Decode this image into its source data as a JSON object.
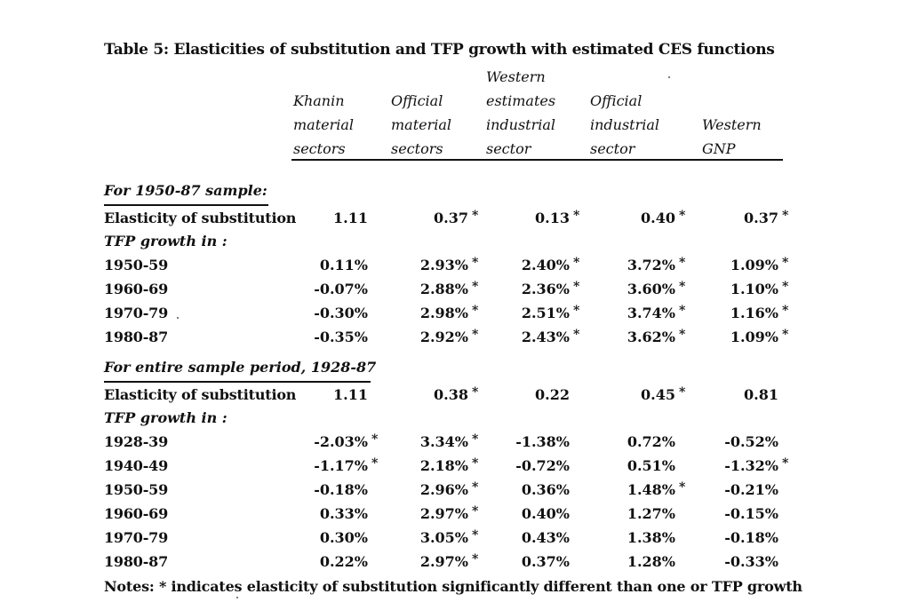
{
  "title": "Table 5:  Elasticities of substitution and TFP growth with estimated CES functions",
  "columns": [
    {
      "lines": [
        "Khanin",
        "material",
        "sectors"
      ]
    },
    {
      "lines": [
        "Official",
        "material",
        "sectors"
      ]
    },
    {
      "lines": [
        "Western",
        "estimates",
        "industrial",
        "sector"
      ]
    },
    {
      "lines": [
        "Official",
        "industrial",
        "sector"
      ]
    },
    {
      "lines": [
        "Western",
        "GNP"
      ]
    }
  ],
  "sections": [
    {
      "heading": "For 1950-87 sample:",
      "elasticity": {
        "label": "Elasticity of substitution",
        "cells": [
          {
            "v": "1.11",
            "star": ""
          },
          {
            "v": "0.37",
            "star": "*"
          },
          {
            "v": "0.13",
            "star": "*"
          },
          {
            "v": "0.40",
            "star": "*"
          },
          {
            "v": "0.37",
            "star": "*"
          }
        ]
      },
      "tfp_label": "TFP growth in :",
      "rows": [
        {
          "label": "1950-59",
          "cells": [
            {
              "v": "0.11%",
              "star": ""
            },
            {
              "v": "2.93%",
              "star": "*"
            },
            {
              "v": "2.40%",
              "star": "*"
            },
            {
              "v": "3.72%",
              "star": "*"
            },
            {
              "v": "1.09%",
              "star": "*"
            }
          ]
        },
        {
          "label": "1960-69",
          "cells": [
            {
              "v": "-0.07%",
              "star": ""
            },
            {
              "v": "2.88%",
              "star": "*"
            },
            {
              "v": "2.36%",
              "star": "*"
            },
            {
              "v": "3.60%",
              "star": "*"
            },
            {
              "v": "1.10%",
              "star": "*"
            }
          ]
        },
        {
          "label": "1970-79",
          "cells": [
            {
              "v": "-0.30%",
              "star": ""
            },
            {
              "v": "2.98%",
              "star": "*"
            },
            {
              "v": "2.51%",
              "star": "*"
            },
            {
              "v": "3.74%",
              "star": "*"
            },
            {
              "v": "1.16%",
              "star": "*"
            }
          ]
        },
        {
          "label": "1980-87",
          "cells": [
            {
              "v": "-0.35%",
              "star": ""
            },
            {
              "v": "2.92%",
              "star": "*"
            },
            {
              "v": "2.43%",
              "star": "*"
            },
            {
              "v": "3.62%",
              "star": "*"
            },
            {
              "v": "1.09%",
              "star": "*"
            }
          ]
        }
      ]
    },
    {
      "heading": "For entire sample period, 1928-87",
      "elasticity": {
        "label": "Elasticity of substitution",
        "cells": [
          {
            "v": "1.11",
            "star": ""
          },
          {
            "v": "0.38",
            "star": "*"
          },
          {
            "v": "0.22",
            "star": ""
          },
          {
            "v": "0.45",
            "star": "*"
          },
          {
            "v": "0.81",
            "star": ""
          }
        ]
      },
      "tfp_label": "TFP growth in :",
      "rows": [
        {
          "label": "1928-39",
          "cells": [
            {
              "v": "-2.03%",
              "star": "*"
            },
            {
              "v": "3.34%",
              "star": "*"
            },
            {
              "v": "-1.38%",
              "star": ""
            },
            {
              "v": "0.72%",
              "star": ""
            },
            {
              "v": "-0.52%",
              "star": ""
            }
          ]
        },
        {
          "label": "1940-49",
          "cells": [
            {
              "v": "-1.17%",
              "star": "*"
            },
            {
              "v": "2.18%",
              "star": "*"
            },
            {
              "v": "-0.72%",
              "star": ""
            },
            {
              "v": "0.51%",
              "star": ""
            },
            {
              "v": "-1.32%",
              "star": "*"
            }
          ]
        },
        {
          "label": "1950-59",
          "cells": [
            {
              "v": "-0.18%",
              "star": ""
            },
            {
              "v": "2.96%",
              "star": "*"
            },
            {
              "v": "0.36%",
              "star": ""
            },
            {
              "v": "1.48%",
              "star": "*"
            },
            {
              "v": "-0.21%",
              "star": ""
            }
          ]
        },
        {
          "label": "1960-69",
          "cells": [
            {
              "v": "0.33%",
              "star": ""
            },
            {
              "v": "2.97%",
              "star": "*"
            },
            {
              "v": "0.40%",
              "star": ""
            },
            {
              "v": "1.27%",
              "star": ""
            },
            {
              "v": "-0.15%",
              "star": ""
            }
          ]
        },
        {
          "label": "1970-79",
          "cells": [
            {
              "v": "0.30%",
              "star": ""
            },
            {
              "v": "3.05%",
              "star": "*"
            },
            {
              "v": "0.43%",
              "star": ""
            },
            {
              "v": "1.38%",
              "star": ""
            },
            {
              "v": "-0.18%",
              "star": ""
            }
          ]
        },
        {
          "label": "1980-87",
          "cells": [
            {
              "v": "0.22%",
              "star": ""
            },
            {
              "v": "2.97%",
              "star": "*"
            },
            {
              "v": "0.37%",
              "star": ""
            },
            {
              "v": "1.28%",
              "star": ""
            },
            {
              "v": "-0.33%",
              "star": ""
            }
          ]
        }
      ]
    }
  ],
  "notes": "Notes:  * indicates elasticity of substitution significantly different than one or TFP growth"
}
